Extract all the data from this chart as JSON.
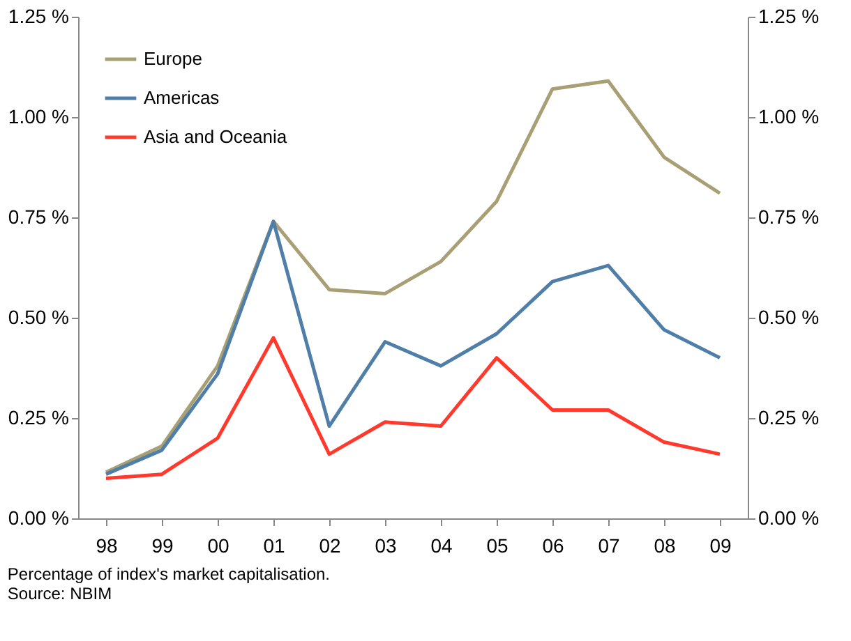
{
  "chart_data": {
    "type": "line",
    "categories": [
      "98",
      "99",
      "00",
      "01",
      "02",
      "03",
      "04",
      "05",
      "06",
      "07",
      "08",
      "09"
    ],
    "series": [
      {
        "name": "Europe",
        "color": "#a89f75",
        "values": [
          0.115,
          0.18,
          0.38,
          0.74,
          0.57,
          0.56,
          0.64,
          0.79,
          1.07,
          1.09,
          0.9,
          0.81
        ]
      },
      {
        "name": "Americas",
        "color": "#4f7fa8",
        "values": [
          0.11,
          0.17,
          0.36,
          0.74,
          0.23,
          0.44,
          0.38,
          0.46,
          0.59,
          0.63,
          0.47,
          0.4
        ]
      },
      {
        "name": "Asia and Oceania",
        "color": "#ff3a2d",
        "values": [
          0.1,
          0.11,
          0.2,
          0.45,
          0.16,
          0.24,
          0.23,
          0.4,
          0.27,
          0.27,
          0.19,
          0.16
        ]
      }
    ],
    "ylim": [
      0,
      1.25
    ],
    "yticks": [
      {
        "value": 0,
        "label": "0.00 %"
      },
      {
        "value": 0.25,
        "label": "0.25 %"
      },
      {
        "value": 0.5,
        "label": "0.50 %"
      },
      {
        "value": 0.75,
        "label": "0.75 %"
      },
      {
        "value": 1.0,
        "label": "1.00 %"
      },
      {
        "value": 1.25,
        "label": "1.25 %"
      }
    ],
    "y2lim": [
      0,
      1.25
    ],
    "y2ticks": [
      {
        "value": 0,
        "label": "0.00 %"
      },
      {
        "value": 0.25,
        "label": "0.25 %"
      },
      {
        "value": 0.5,
        "label": "0.50 %"
      },
      {
        "value": 0.75,
        "label": "0.75 %"
      },
      {
        "value": 1.0,
        "label": "1.00 %"
      },
      {
        "value": 1.25,
        "label": "1.25 %"
      }
    ],
    "legend": "top left",
    "grid": false,
    "line_style": "solid",
    "marker": "none",
    "annotations": [
      "Percentage of index's market capitalisation.",
      "Source: NBIM"
    ]
  }
}
